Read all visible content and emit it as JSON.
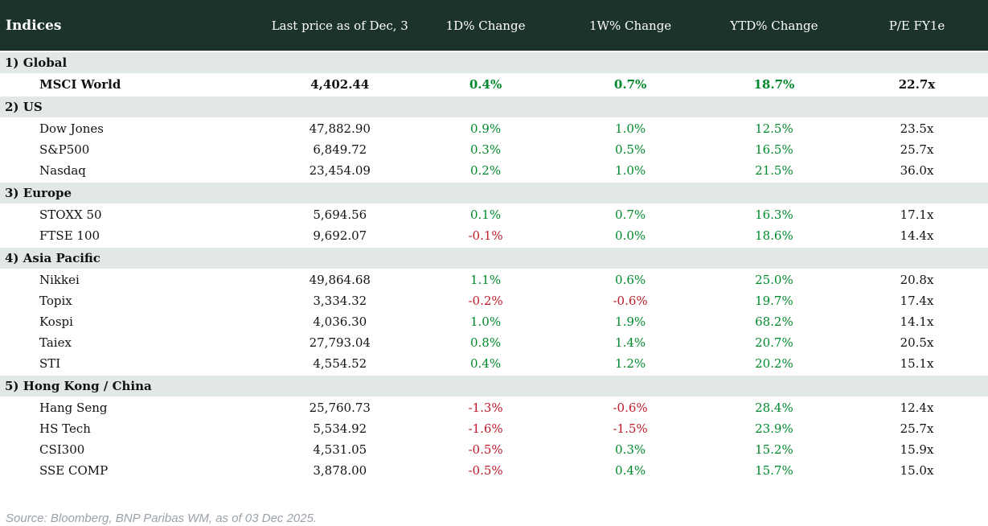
{
  "table": {
    "columns": [
      "Indices",
      "Last price as of Dec, 3",
      "1D% Change",
      "1W% Change",
      "YTD% Change",
      "P/E FY1e"
    ],
    "sections": [
      {
        "label": "1) Global",
        "rows": [
          {
            "name": "MSCI World",
            "price": "4,402.44",
            "d1": "0.4%",
            "w1": "0.7%",
            "ytd": "18.7%",
            "pe": "22.7x",
            "bold": true
          }
        ]
      },
      {
        "label": "2) US",
        "rows": [
          {
            "name": "Dow Jones",
            "price": "47,882.90",
            "d1": "0.9%",
            "w1": "1.0%",
            "ytd": "12.5%",
            "pe": "23.5x",
            "bold": false
          },
          {
            "name": "S&P500",
            "price": "6,849.72",
            "d1": "0.3%",
            "w1": "0.5%",
            "ytd": "16.5%",
            "pe": "25.7x",
            "bold": false
          },
          {
            "name": "Nasdaq",
            "price": "23,454.09",
            "d1": "0.2%",
            "w1": "1.0%",
            "ytd": "21.5%",
            "pe": "36.0x",
            "bold": false
          }
        ]
      },
      {
        "label": "3) Europe",
        "rows": [
          {
            "name": "STOXX 50",
            "price": "5,694.56",
            "d1": "0.1%",
            "w1": "0.7%",
            "ytd": "16.3%",
            "pe": "17.1x",
            "bold": false
          },
          {
            "name": "FTSE 100",
            "price": "9,692.07",
            "d1": "-0.1%",
            "w1": "0.0%",
            "ytd": "18.6%",
            "pe": "14.4x",
            "bold": false
          }
        ]
      },
      {
        "label": "4) Asia Pacific",
        "rows": [
          {
            "name": "Nikkei",
            "price": "49,864.68",
            "d1": "1.1%",
            "w1": "0.6%",
            "ytd": "25.0%",
            "pe": "20.8x",
            "bold": false
          },
          {
            "name": "Topix",
            "price": "3,334.32",
            "d1": "-0.2%",
            "w1": "-0.6%",
            "ytd": "19.7%",
            "pe": "17.4x",
            "bold": false
          },
          {
            "name": "Kospi",
            "price": "4,036.30",
            "d1": "1.0%",
            "w1": "1.9%",
            "ytd": "68.2%",
            "pe": "14.1x",
            "bold": false
          },
          {
            "name": "Taiex",
            "price": "27,793.04",
            "d1": "0.8%",
            "w1": "1.4%",
            "ytd": "20.7%",
            "pe": "20.5x",
            "bold": false
          },
          {
            "name": "STI",
            "price": "4,554.52",
            "d1": "0.4%",
            "w1": "1.2%",
            "ytd": "20.2%",
            "pe": "15.1x",
            "bold": false
          }
        ]
      },
      {
        "label": "5) Hong Kong / China",
        "rows": [
          {
            "name": "Hang Seng",
            "price": "25,760.73",
            "d1": "-1.3%",
            "w1": "-0.6%",
            "ytd": "28.4%",
            "pe": "12.4x",
            "bold": false
          },
          {
            "name": "HS Tech",
            "price": "5,534.92",
            "d1": "-1.6%",
            "w1": "-1.5%",
            "ytd": "23.9%",
            "pe": "25.7x",
            "bold": false
          },
          {
            "name": "CSI300",
            "price": "4,531.05",
            "d1": "-0.5%",
            "w1": "0.3%",
            "ytd": "15.2%",
            "pe": "15.9x",
            "bold": false
          },
          {
            "name": "SSE COMP",
            "price": "3,878.00",
            "d1": "-0.5%",
            "w1": "0.4%",
            "ytd": "15.7%",
            "pe": "15.0x",
            "bold": false
          }
        ]
      }
    ]
  },
  "footer": {
    "source": "Source: Bloomberg, BNP Paribas WM, as of 03 Dec 2025."
  },
  "colors": {
    "header_bg": "#1c332c",
    "header_text": "#ffffff",
    "section_bg": "#e2e8e4",
    "positive": "#018a2c",
    "negative": "#bf1a2a",
    "source_text": "#9aa1a8"
  }
}
